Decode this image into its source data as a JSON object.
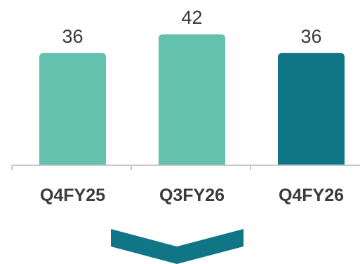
{
  "chart_data": {
    "type": "bar",
    "categories": [
      "Q4FY25",
      "Q3FY26",
      "Q4FY26"
    ],
    "values": [
      36,
      42,
      36
    ],
    "bar_colors": [
      "#63c1ae",
      "#63c1ae",
      "#107686"
    ],
    "title": "",
    "xlabel": "",
    "ylabel": "",
    "grid": false,
    "legend": "none"
  },
  "indicator": {
    "icon": "chevron-down-icon",
    "color": "#107686"
  }
}
